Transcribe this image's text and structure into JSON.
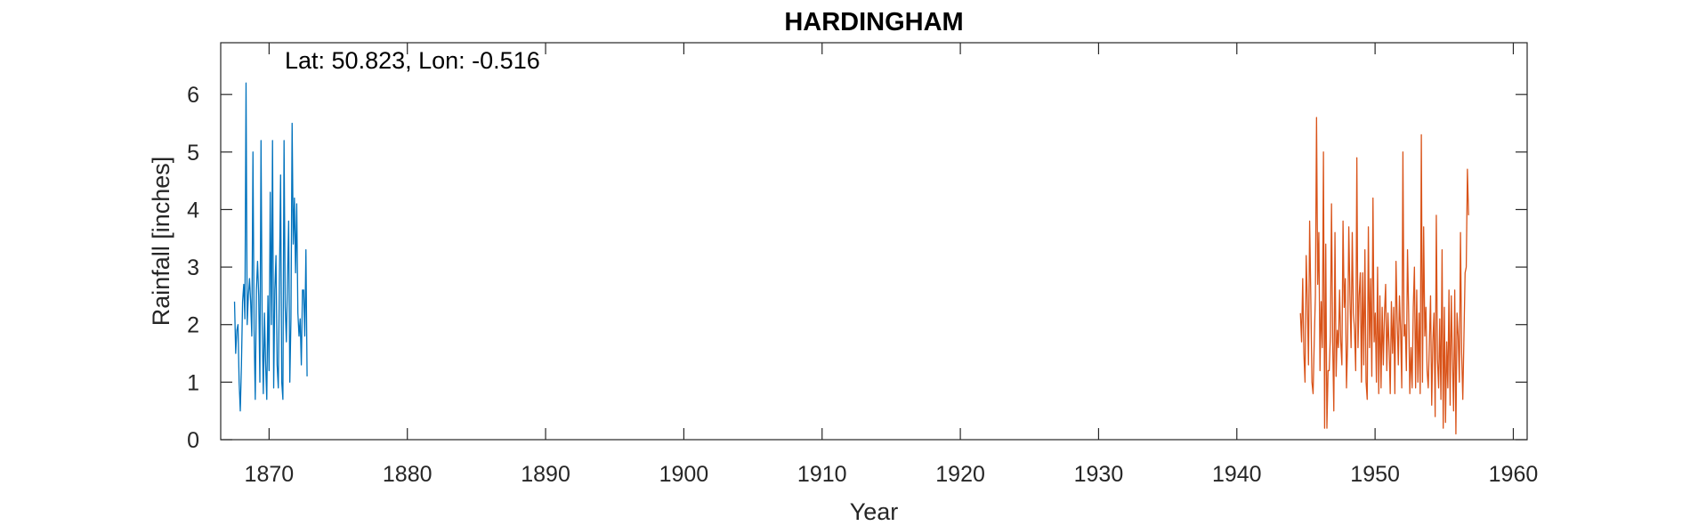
{
  "chart_data": {
    "type": "line",
    "title": "HARDINGHAM",
    "xlabel": "Year",
    "ylabel": "Rainfall [inches]",
    "annotation": "Lat: 50.823, Lon: -0.516",
    "xlim": [
      1866.5,
      1961
    ],
    "ylim": [
      0,
      6.9
    ],
    "xticks": [
      1870,
      1880,
      1890,
      1900,
      1910,
      1920,
      1930,
      1940,
      1950,
      1960
    ],
    "yticks": [
      0,
      1,
      2,
      3,
      4,
      5,
      6
    ],
    "grid": false,
    "legend": "none",
    "series": [
      {
        "color": "#0072BD",
        "x_start": 1867.5,
        "x_step": 0.0833,
        "values": [
          2.4,
          1.5,
          1.9,
          2.0,
          1.0,
          0.5,
          1.3,
          2.4,
          2.7,
          2.1,
          6.2,
          2.0,
          2.5,
          2.8,
          2.4,
          1.8,
          5.0,
          1.9,
          0.7,
          2.6,
          3.1,
          2.5,
          1.0,
          5.2,
          2.0,
          0.8,
          2.2,
          1.3,
          0.7,
          2.5,
          1.2,
          4.3,
          2.0,
          5.2,
          0.9,
          2.6,
          3.2,
          1.3,
          0.9,
          2.8,
          4.6,
          1.0,
          0.7,
          5.2,
          2.3,
          1.7,
          2.8,
          3.8,
          1.0,
          2.1,
          5.5,
          3.4,
          4.2,
          2.9,
          4.1,
          2.2,
          1.8,
          2.1,
          1.3,
          2.6,
          2.6,
          1.8,
          3.3,
          1.1
        ]
      },
      {
        "color": "#D95319",
        "x_start": 1944.6,
        "x_step": 0.0833,
        "values": [
          2.2,
          1.7,
          2.8,
          1.5,
          1.0,
          3.2,
          2.4,
          1.3,
          3.8,
          2.5,
          1.0,
          0.8,
          1.7,
          2.5,
          5.6,
          2.7,
          3.6,
          1.2,
          2.4,
          1.6,
          5.0,
          0.2,
          3.4,
          0.2,
          1.2,
          1.2,
          1.8,
          4.1,
          1.7,
          0.5,
          3.6,
          1.1,
          1.9,
          1.6,
          2.6,
          1.7,
          1.3,
          3.8,
          2.3,
          2.8,
          0.9,
          1.7,
          3.7,
          2.5,
          1.6,
          3.6,
          2.2,
          1.9,
          1.2,
          4.9,
          1.6,
          2.5,
          2.9,
          1.0,
          2.9,
          1.3,
          3.3,
          1.0,
          0.7,
          3.7,
          1.6,
          2.8,
          1.1,
          4.2,
          1.7,
          2.2,
          1.0,
          3.0,
          0.8,
          2.5,
          0.9,
          2.3,
          1.3,
          2.2,
          2.7,
          1.2,
          2.2,
          1.6,
          0.8,
          2.4,
          1.5,
          2.3,
          0.8,
          3.1,
          2.1,
          1.3,
          2.5,
          1.9,
          0.9,
          5.0,
          1.8,
          2.0,
          1.2,
          3.3,
          2.2,
          0.8,
          1.6,
          0.9,
          2.3,
          3.0,
          0.9,
          2.6,
          1.0,
          2.2,
          0.8,
          5.3,
          1.0,
          3.7,
          1.8,
          2.3,
          1.2,
          0.9,
          1.7,
          2.5,
          0.6,
          1.7,
          2.2,
          0.4,
          3.9,
          1.4,
          0.9,
          2.1,
          0.7,
          3.3,
          0.2,
          2.3,
          0.3,
          1.7,
          0.9,
          2.6,
          0.6,
          2.5,
          1.4,
          0.5,
          2.6,
          0.1,
          2.2,
          1.8,
          1.0,
          3.6,
          1.5,
          0.7,
          1.8,
          2.9,
          3.0,
          4.7,
          3.9
        ]
      }
    ]
  }
}
